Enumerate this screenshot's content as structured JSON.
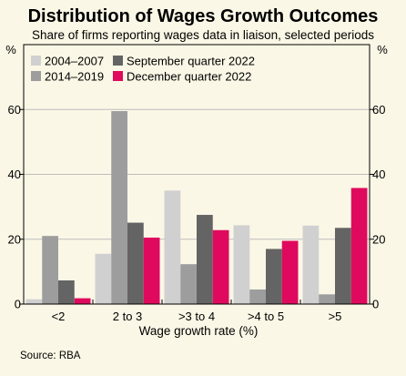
{
  "chart_data": {
    "type": "bar",
    "title": "Distribution of Wages Growth Outcomes",
    "subtitle": "Share of firms reporting wages data in liaison, selected periods",
    "xlabel": "Wage growth rate (%)",
    "ylabel_left": "%",
    "ylabel_right": "%",
    "ylim": [
      0,
      80
    ],
    "yticks": [
      0,
      20,
      40,
      60
    ],
    "grid": true,
    "legend_position": "top-left",
    "categories": [
      "<2",
      "2 to 3",
      ">3 to 4",
      ">4 to 5",
      ">5"
    ],
    "series": [
      {
        "name": "2004–2007",
        "color": "#d0d0d0",
        "values": [
          1.5,
          15.5,
          35,
          24.3,
          24.2
        ]
      },
      {
        "name": "2014–2019",
        "color": "#9d9d9d",
        "values": [
          21,
          59.5,
          12.3,
          4.5,
          3
        ]
      },
      {
        "name": "September quarter 2022",
        "color": "#646464",
        "values": [
          7.3,
          25.1,
          27.5,
          17,
          23.5
        ]
      },
      {
        "name": "December quarter 2022",
        "color": "#df0a5d",
        "values": [
          1.8,
          20.5,
          22.8,
          19.5,
          35.8
        ]
      }
    ],
    "source": "Source:   RBA"
  }
}
